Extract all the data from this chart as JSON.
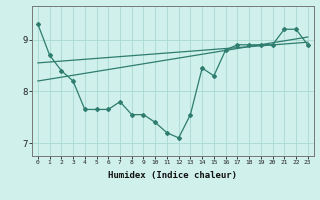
{
  "xlabel": "Humidex (Indice chaleur)",
  "x_values": [
    0,
    1,
    2,
    3,
    4,
    5,
    6,
    7,
    8,
    9,
    10,
    11,
    12,
    13,
    14,
    15,
    16,
    17,
    18,
    19,
    20,
    21,
    22,
    23
  ],
  "data_line": [
    9.3,
    8.7,
    8.4,
    8.2,
    7.65,
    7.65,
    7.65,
    7.8,
    7.55,
    7.55,
    7.4,
    7.2,
    7.1,
    7.55,
    8.45,
    8.3,
    8.8,
    8.9,
    8.9,
    8.9,
    8.9,
    9.2,
    9.2,
    8.9
  ],
  "trend_line1_x": [
    0,
    23
  ],
  "trend_line1_y": [
    8.55,
    8.95
  ],
  "trend_line2_x": [
    0,
    23
  ],
  "trend_line2_y": [
    8.2,
    9.05
  ],
  "line_color": "#2e7d6e",
  "bg_color": "#cff0eb",
  "grid_color": "#aad9d3",
  "ylim": [
    6.75,
    9.65
  ],
  "xlim": [
    -0.5,
    23.5
  ],
  "yticks": [
    7,
    8,
    9
  ],
  "xticks": [
    0,
    1,
    2,
    3,
    4,
    5,
    6,
    7,
    8,
    9,
    10,
    11,
    12,
    13,
    14,
    15,
    16,
    17,
    18,
    19,
    20,
    21,
    22,
    23
  ]
}
